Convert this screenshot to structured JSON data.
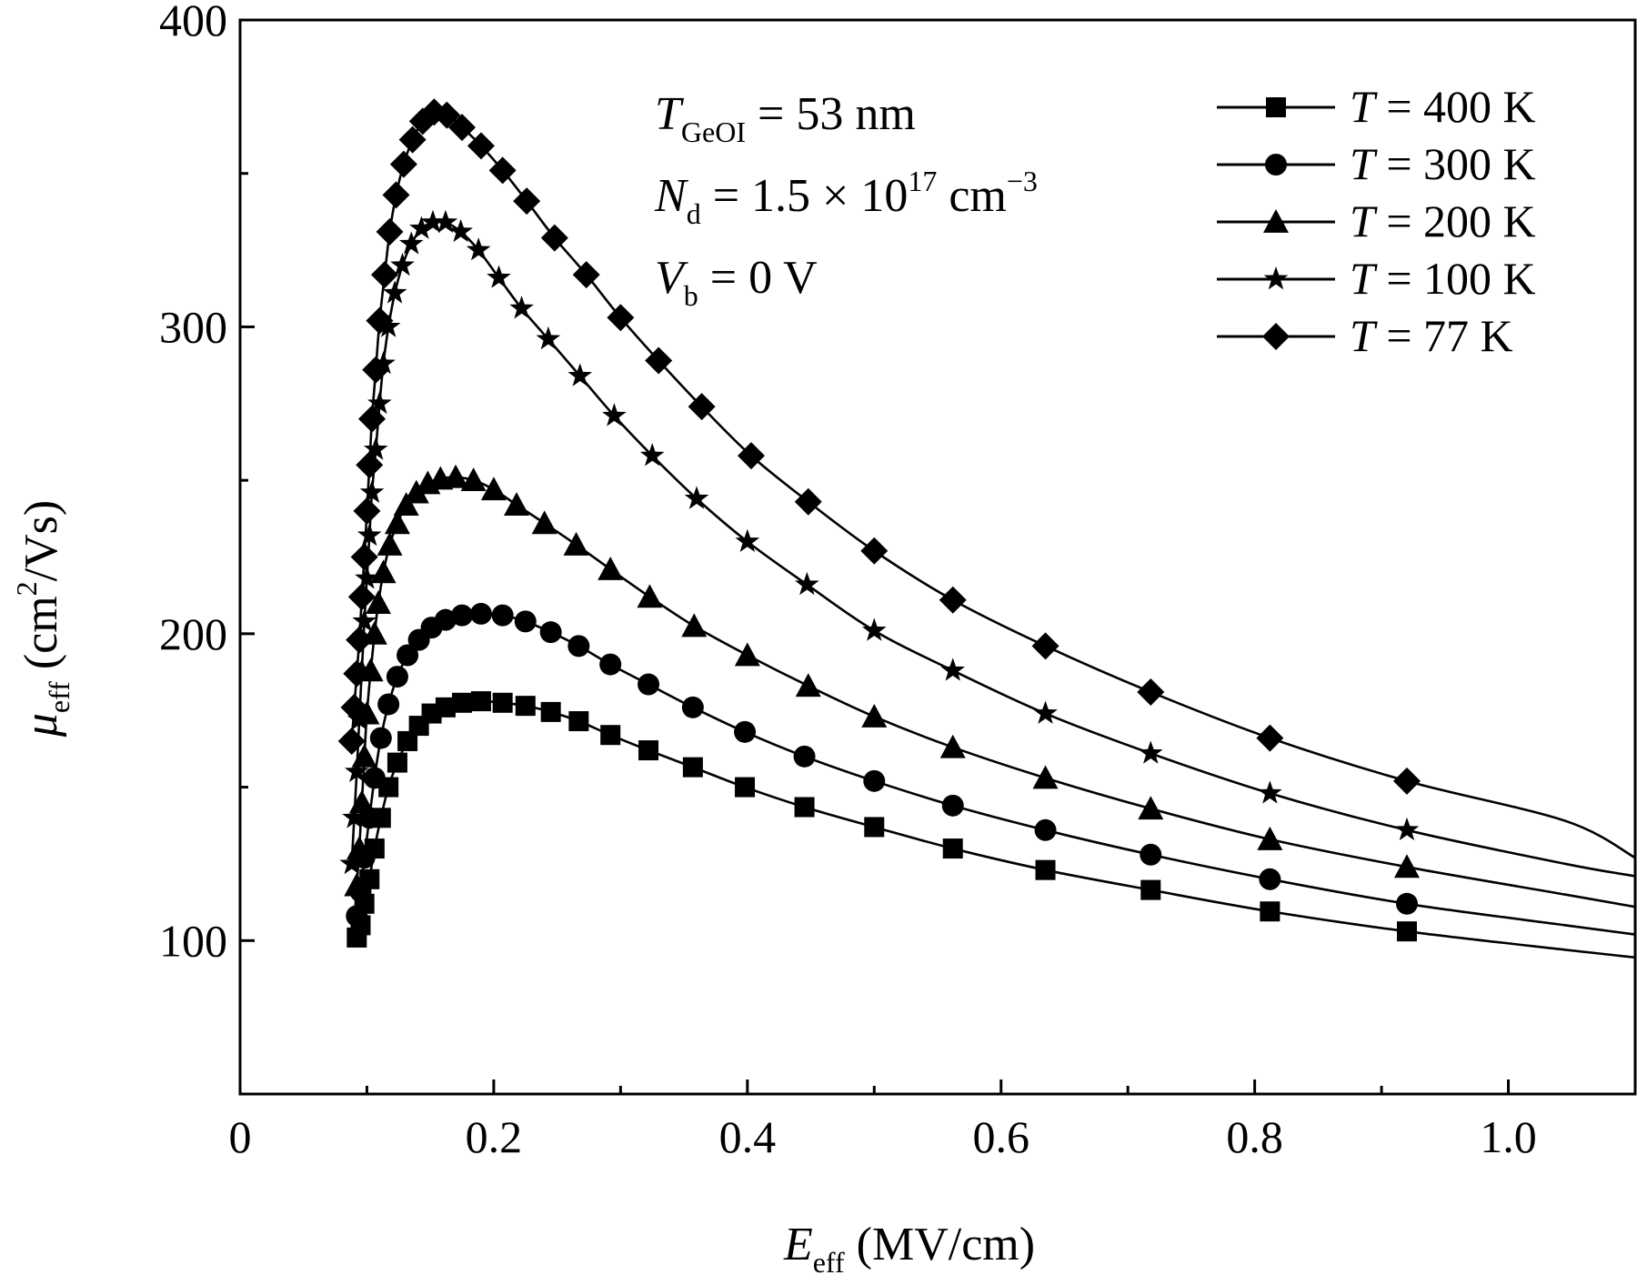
{
  "chart_data": {
    "type": "line",
    "xlabel": {
      "symbol": "E",
      "sub": "eff",
      "unit": " (MV/cm)"
    },
    "ylabel": {
      "symbol": "μ",
      "sub": "eff",
      "unit_pre": " (cm",
      "unit_sup": "2",
      "unit_post": "/Vs)"
    },
    "xlim": [
      0,
      1.1
    ],
    "ylim": [
      50,
      400
    ],
    "x_ticks": [
      {
        "value": 0,
        "label": "0"
      },
      {
        "value": 0.2,
        "label": "0.2"
      },
      {
        "value": 0.4,
        "label": "0.4"
      },
      {
        "value": 0.6,
        "label": "0.6"
      },
      {
        "value": 0.8,
        "label": "0.8"
      },
      {
        "value": 1.0,
        "label": "1.0"
      }
    ],
    "x_minor_ticks": [
      0.1,
      0.3,
      0.5,
      0.7,
      0.9,
      1.1
    ],
    "y_ticks": [
      {
        "value": 100,
        "label": "100"
      },
      {
        "value": 200,
        "label": "200"
      },
      {
        "value": 300,
        "label": "300"
      },
      {
        "value": 400,
        "label": "400"
      }
    ],
    "y_minor_ticks": [
      50,
      150,
      250,
      350
    ],
    "grid": false,
    "legend_position": "top-right",
    "annotations": [
      {
        "symbol": "T",
        "sub": "GeOI",
        "rest": " = 53 nm"
      },
      {
        "symbol": "N",
        "sub": "d",
        "rest": " = 1.5 × 10",
        "sup": "17",
        "rest2": " cm",
        "sup2": "−3"
      },
      {
        "symbol": "V",
        "sub": "b",
        "rest": " = 0 V"
      }
    ],
    "series": [
      {
        "name_symbol": "T",
        "name_rest": " = 400 K",
        "marker": "square",
        "x": [
          0.092,
          0.095,
          0.098,
          0.102,
          0.106,
          0.111,
          0.117,
          0.124,
          0.132,
          0.141,
          0.151,
          0.162,
          0.175,
          0.19,
          0.207,
          0.225,
          0.245,
          0.267,
          0.292,
          0.322,
          0.357,
          0.398,
          0.445,
          0.5,
          0.562,
          0.635,
          0.718,
          0.812,
          0.92,
          1.045,
          1.1
        ],
        "y": [
          101,
          105,
          112,
          120,
          130,
          140,
          150,
          158,
          165,
          170,
          174,
          176,
          177.5,
          178,
          177.5,
          176.5,
          174.5,
          171.5,
          167,
          162,
          156.5,
          150,
          143.5,
          137,
          130,
          123,
          116.5,
          109.5,
          103,
          97,
          94.5
        ]
      },
      {
        "name_symbol": "T",
        "name_rest": " = 300 K",
        "marker": "circle",
        "x": [
          0.092,
          0.095,
          0.098,
          0.102,
          0.106,
          0.111,
          0.117,
          0.124,
          0.132,
          0.141,
          0.151,
          0.162,
          0.175,
          0.19,
          0.207,
          0.225,
          0.245,
          0.267,
          0.292,
          0.322,
          0.357,
          0.398,
          0.445,
          0.5,
          0.562,
          0.635,
          0.718,
          0.812,
          0.92,
          1.045,
          1.1
        ],
        "y": [
          108,
          116,
          127,
          140,
          153,
          166,
          177,
          186,
          193,
          198,
          202,
          204.5,
          206,
          206.5,
          206,
          204,
          200.5,
          196,
          190,
          183.5,
          176,
          168,
          160,
          152,
          144,
          136,
          128,
          120,
          112,
          105,
          102
        ]
      },
      {
        "name_symbol": "T",
        "name_rest": " = 200 K",
        "marker": "triangle",
        "x": [
          0.092,
          0.094,
          0.096,
          0.098,
          0.1,
          0.103,
          0.106,
          0.109,
          0.113,
          0.118,
          0.124,
          0.131,
          0.139,
          0.148,
          0.158,
          0.17,
          0.184,
          0.2,
          0.218,
          0.24,
          0.265,
          0.292,
          0.323,
          0.358,
          0.4,
          0.448,
          0.5,
          0.562,
          0.635,
          0.718,
          0.812,
          0.92,
          1.045,
          1.1
        ],
        "y": [
          118,
          130,
          145,
          160,
          174,
          188,
          200,
          210,
          220,
          229,
          236,
          242,
          246,
          249,
          250.5,
          251,
          250,
          247,
          242,
          236,
          229,
          221,
          212,
          202.5,
          193,
          183,
          173,
          163,
          153,
          143,
          133,
          124,
          115,
          111
        ]
      },
      {
        "name_symbol": "T",
        "name_rest": " = 100 K",
        "marker": "star",
        "x": [
          0.088,
          0.09,
          0.092,
          0.094,
          0.096,
          0.098,
          0.1,
          0.102,
          0.104,
          0.107,
          0.11,
          0.113,
          0.117,
          0.122,
          0.128,
          0.135,
          0.143,
          0.152,
          0.162,
          0.174,
          0.188,
          0.204,
          0.222,
          0.243,
          0.268,
          0.295,
          0.325,
          0.36,
          0.4,
          0.447,
          0.5,
          0.562,
          0.635,
          0.718,
          0.812,
          0.92,
          1.045,
          1.1
        ],
        "y": [
          125,
          140,
          155,
          172,
          188,
          204,
          218,
          232,
          246,
          260,
          275,
          288,
          300,
          311,
          320,
          327,
          332,
          334,
          334,
          331,
          325,
          316,
          306,
          296,
          284,
          271,
          258,
          244,
          230,
          216,
          201,
          188,
          174,
          161,
          148,
          136,
          125,
          121
        ]
      },
      {
        "name_symbol": "T",
        "name_rest": " = 77 K",
        "marker": "diamond",
        "x": [
          0.088,
          0.09,
          0.092,
          0.094,
          0.096,
          0.098,
          0.1,
          0.102,
          0.104,
          0.107,
          0.11,
          0.114,
          0.118,
          0.123,
          0.129,
          0.136,
          0.144,
          0.153,
          0.163,
          0.175,
          0.19,
          0.207,
          0.226,
          0.248,
          0.273,
          0.3,
          0.33,
          0.364,
          0.403,
          0.448,
          0.5,
          0.562,
          0.635,
          0.718,
          0.812,
          0.92,
          1.045,
          1.1
        ],
        "y": [
          165,
          176,
          187,
          198,
          212,
          225,
          240,
          255,
          270,
          286,
          302,
          317,
          331,
          343,
          353,
          361,
          367,
          370,
          369,
          365,
          359,
          351,
          341,
          329,
          317,
          303,
          289,
          274,
          258,
          243,
          227,
          211,
          196,
          181,
          166,
          152,
          139,
          127
        ]
      }
    ]
  }
}
